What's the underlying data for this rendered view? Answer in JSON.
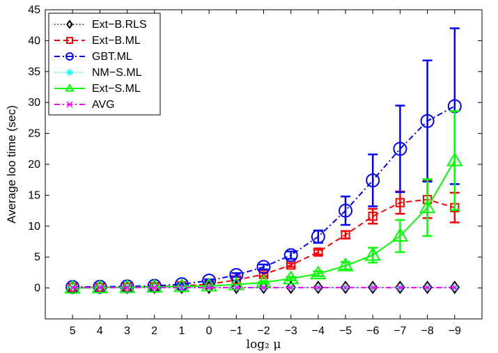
{
  "chart_data": {
    "type": "line",
    "title": "",
    "xlabel": "log₂ μ",
    "ylabel": "Average loo time (sec)",
    "categories": [
      "5",
      "4",
      "3",
      "2",
      "1",
      "0",
      "−1",
      "−2",
      "−3",
      "−4",
      "−5",
      "−6",
      "−7",
      "−8",
      "−9"
    ],
    "ylim": [
      -5,
      45
    ],
    "yticks": [
      0,
      5,
      10,
      15,
      20,
      25,
      30,
      35,
      40,
      45
    ],
    "ytick_labels": [
      "0",
      "5",
      "10",
      "15",
      "20",
      "25",
      "30",
      "35",
      "40",
      "45"
    ],
    "grid": false,
    "legend_position": "top-left",
    "series": [
      {
        "name": "Ext−B.RLS",
        "color": "#000000",
        "marker": "diamond",
        "line_style": "dotted",
        "values": [
          0.1,
          0.1,
          0.1,
          0.1,
          0.1,
          0.1,
          0.1,
          0.1,
          0.1,
          0.1,
          0.1,
          0.1,
          0.1,
          0.1,
          0.1
        ],
        "errors": null
      },
      {
        "name": "Ext−B.ML",
        "color": "#ff0000",
        "marker": "square",
        "line_style": "dashed",
        "values": [
          0.1,
          0.1,
          0.15,
          0.2,
          0.35,
          0.6,
          1.3,
          2.2,
          3.7,
          5.8,
          8.6,
          11.6,
          13.8,
          14.3,
          13.0
        ],
        "errors": [
          0,
          0,
          0,
          0,
          0,
          0,
          0,
          0.3,
          0.3,
          0.4,
          0.6,
          1.2,
          1.8,
          3.0,
          2.4
        ]
      },
      {
        "name": "GBT.ML",
        "color": "#0000ff",
        "marker": "circle",
        "line_style": "dashdot",
        "values": [
          0.15,
          0.2,
          0.25,
          0.35,
          0.6,
          1.2,
          2.1,
          3.4,
          5.3,
          8.3,
          12.5,
          17.4,
          22.5,
          27.0,
          29.4
        ],
        "errors": [
          0,
          0,
          0,
          0,
          0.1,
          0.2,
          0.3,
          0.4,
          0.6,
          1.0,
          2.3,
          4.2,
          7.0,
          9.8,
          12.6
        ]
      },
      {
        "name": "NM−S.ML",
        "color": "#00ffff",
        "marker": "star",
        "line_style": "dotted",
        "values": [
          0.05,
          0.05,
          0.05,
          0.05,
          0.05,
          0.05,
          0.05,
          0.05,
          0.05,
          0.05,
          0.05,
          0.05,
          0.05,
          0.05,
          0.05
        ],
        "errors": null
      },
      {
        "name": "Ext−S.ML",
        "color": "#00ff00",
        "marker": "triangle",
        "line_style": "solid",
        "values": [
          0.0,
          0.05,
          0.1,
          0.15,
          0.25,
          0.35,
          0.55,
          0.9,
          1.5,
          2.3,
          3.6,
          5.3,
          8.4,
          13.0,
          20.6
        ],
        "errors": [
          0,
          0,
          0,
          0,
          0,
          0,
          0,
          0.2,
          0.3,
          0.4,
          0.6,
          1.2,
          2.6,
          4.6,
          8.0
        ]
      },
      {
        "name": "AVG",
        "color": "#ff00ff",
        "marker": "x",
        "line_style": "dashdot",
        "values": [
          0.05,
          0.05,
          0.05,
          0.05,
          0.05,
          0.05,
          0.05,
          0.05,
          0.05,
          0.05,
          0.05,
          0.05,
          0.05,
          0.05,
          0.05
        ],
        "errors": null
      }
    ]
  }
}
